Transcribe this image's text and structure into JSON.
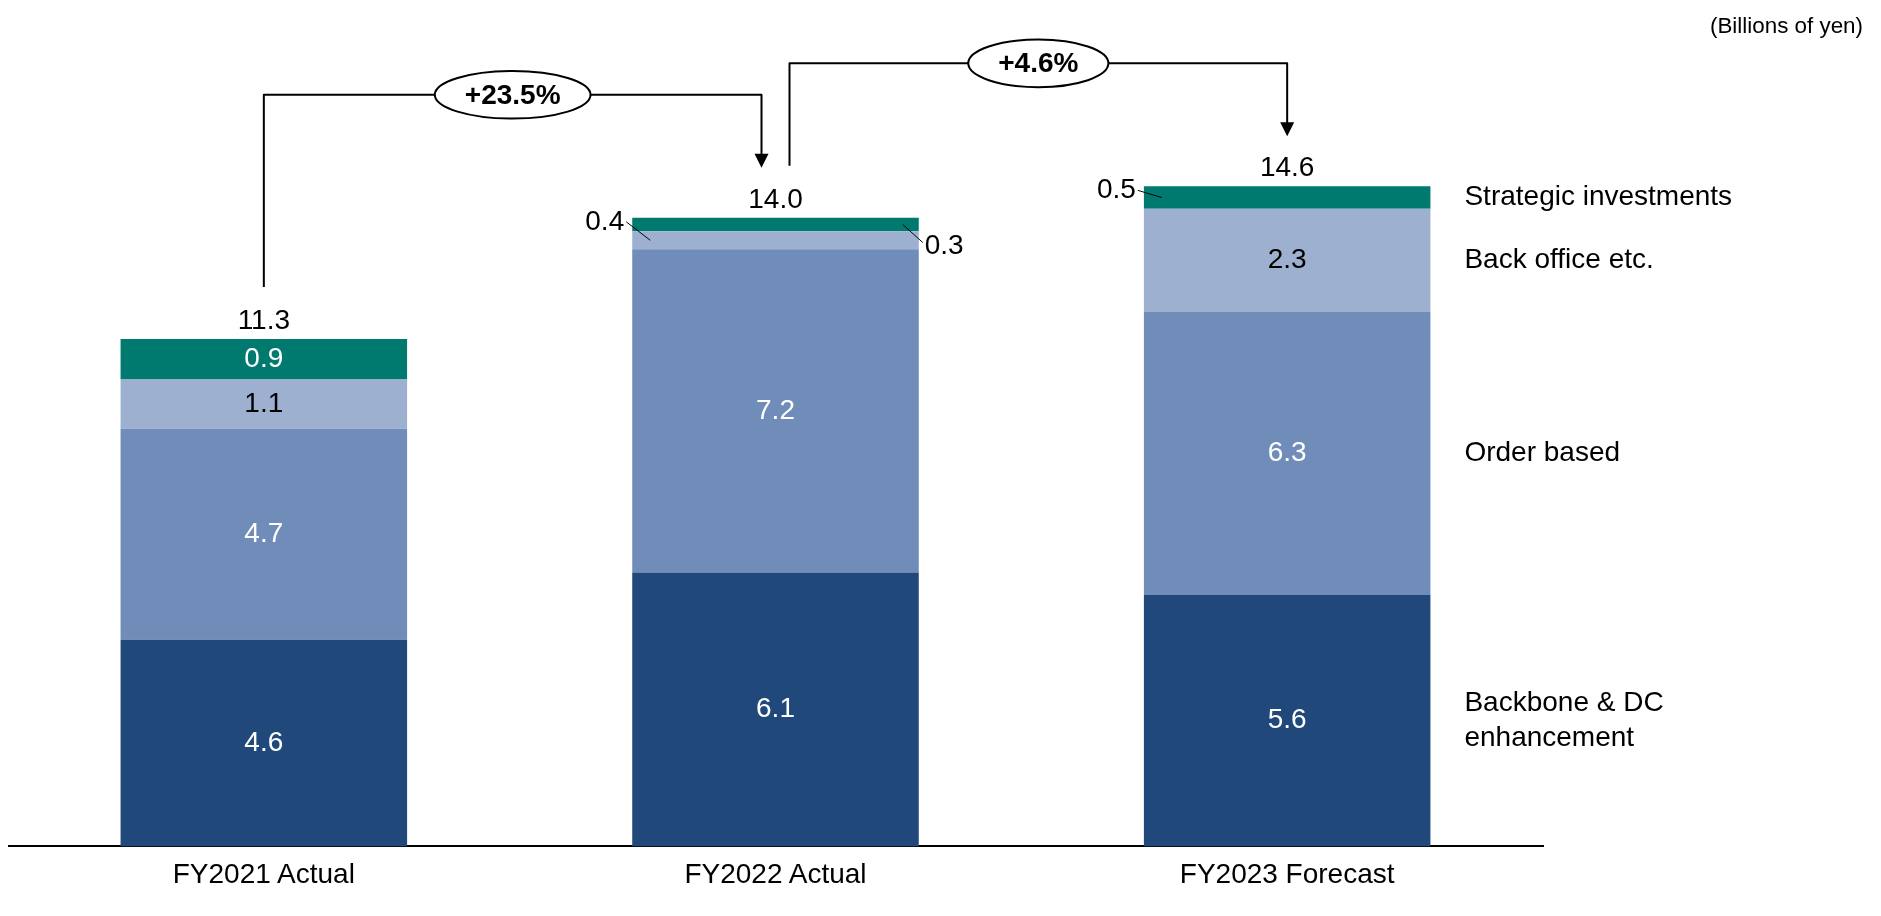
{
  "chart_data": {
    "type": "bar",
    "stacked": true,
    "data_labels": true,
    "categories": [
      "FY2021 Actual",
      "FY2022 Actual",
      "FY2023 Forecast"
    ],
    "series": [
      {
        "name": "Backbone & DC enhancement",
        "color": "#20487a",
        "values": [
          4.6,
          6.1,
          5.6
        ]
      },
      {
        "name": "Order based",
        "color": "#6f8db8",
        "values": [
          4.7,
          7.2,
          6.3
        ]
      },
      {
        "name": "Back office etc.",
        "color": "#9eb0d0",
        "values": [
          1.1,
          0.4,
          2.3
        ]
      },
      {
        "name": "Strategic investments",
        "color": "#007a6e",
        "values": [
          0.9,
          0.3,
          0.5
        ]
      }
    ],
    "totals": [
      "11.3",
      "14.0",
      "14.6"
    ],
    "annotations": [
      "(Billions of yen)",
      "+23.5%",
      "+4.6%"
    ]
  }
}
